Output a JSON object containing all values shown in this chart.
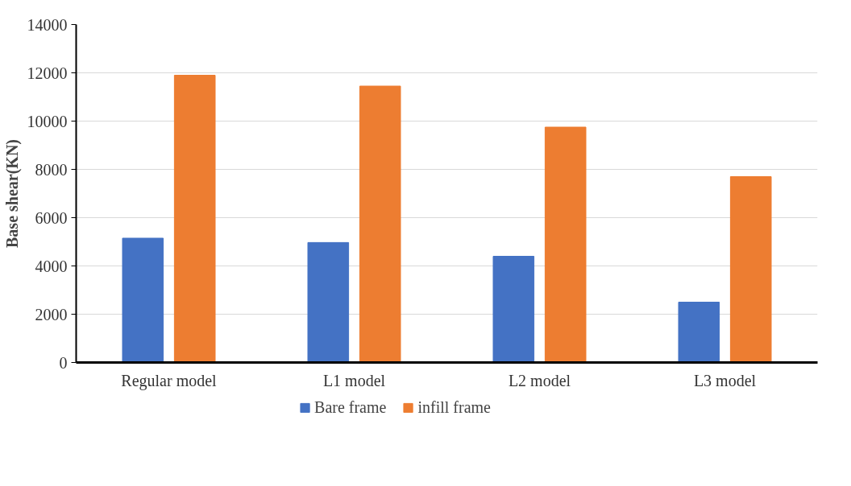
{
  "chart_data": {
    "type": "bar",
    "ylabel": "Base shear(KN)",
    "categories": [
      "Regular model",
      "L1 model",
      "L2 model",
      "L3 model"
    ],
    "series": [
      {
        "name": "Bare frame",
        "color": "#4472c4",
        "values": [
          5150,
          4970,
          4400,
          2500
        ]
      },
      {
        "name": "infill frame",
        "color": "#ed7d31",
        "values": [
          11900,
          11450,
          9750,
          7700
        ]
      }
    ],
    "ylim": [
      0,
      14000
    ],
    "yticks": [
      0,
      2000,
      4000,
      6000,
      8000,
      10000,
      12000,
      14000
    ],
    "grid": "y",
    "legend": "bottom"
  }
}
